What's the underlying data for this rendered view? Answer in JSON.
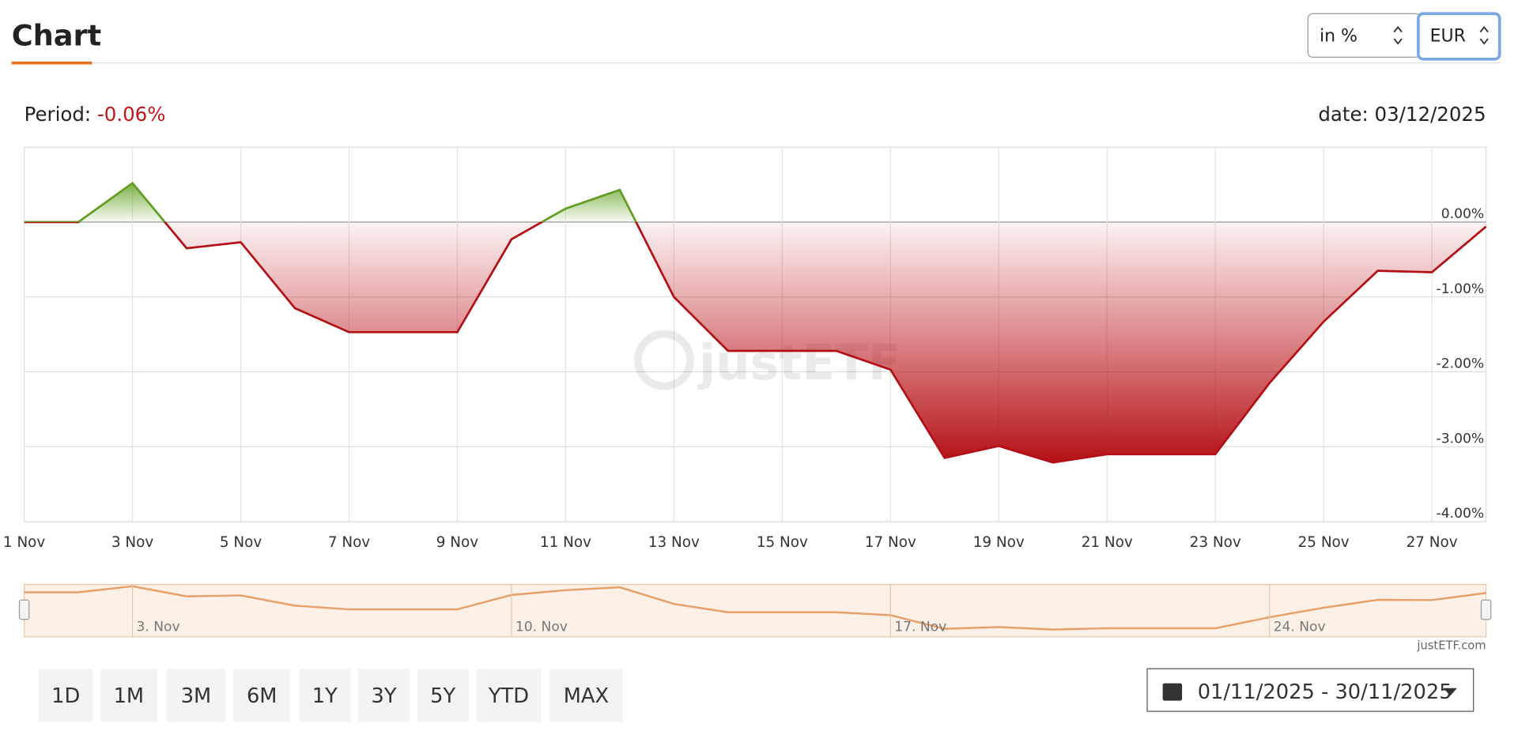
{
  "header": {
    "title": "Chart",
    "unit_select": "in %",
    "currency_select": "EUR",
    "period_label": "Period:",
    "period_value": "-0.06%",
    "date": "date: 03/12/2025",
    "watermark": "justETF"
  },
  "chart_data": {
    "type": "line",
    "categories": [
      "1 Nov",
      null,
      "3 Nov",
      null,
      "5 Nov",
      null,
      "7 Nov",
      null,
      "9 Nov",
      null,
      "11 Nov",
      null,
      "13 Nov",
      null,
      "15 Nov",
      null,
      "17 Nov",
      null,
      "19 Nov",
      null,
      "21 Nov",
      null,
      "23 Nov",
      null,
      "25 Nov",
      null,
      "27 Nov",
      null
    ],
    "values": [
      0,
      0,
      0.52,
      -0.35,
      -0.27,
      -1.15,
      -1.47,
      -1.47,
      -1.47,
      -0.23,
      0.18,
      0.43,
      -1.0,
      -1.72,
      -1.72,
      -1.72,
      -1.97,
      -3.15,
      -2.99,
      -3.21,
      -3.1,
      -3.1,
      -3.1,
      -2.15,
      -1.33,
      -0.65,
      -0.67,
      -0.06
    ],
    "color": "#b30f14",
    "positive_color": "#5f9e1f",
    "ylim": [
      -4,
      1
    ],
    "yticks": [
      {
        "value": 0,
        "label": "0.00%"
      },
      {
        "value": -1,
        "label": "-1.00%"
      },
      {
        "value": -2,
        "label": "-2.00%"
      },
      {
        "value": -3,
        "label": "-3.00%"
      },
      {
        "value": -4,
        "label": "-4.00%"
      }
    ],
    "grid": true
  },
  "navigator": {
    "labels": [
      "3. Nov",
      "10. Nov",
      "17. Nov",
      "24. Nov"
    ],
    "credit": "justETF.com"
  },
  "footer": {
    "buttons": [
      "1D",
      "1M",
      "3M",
      "6M",
      "1Y",
      "3Y",
      "5Y",
      "YTD",
      "MAX"
    ],
    "date_range": "01/11/2025 - 30/11/2025"
  }
}
